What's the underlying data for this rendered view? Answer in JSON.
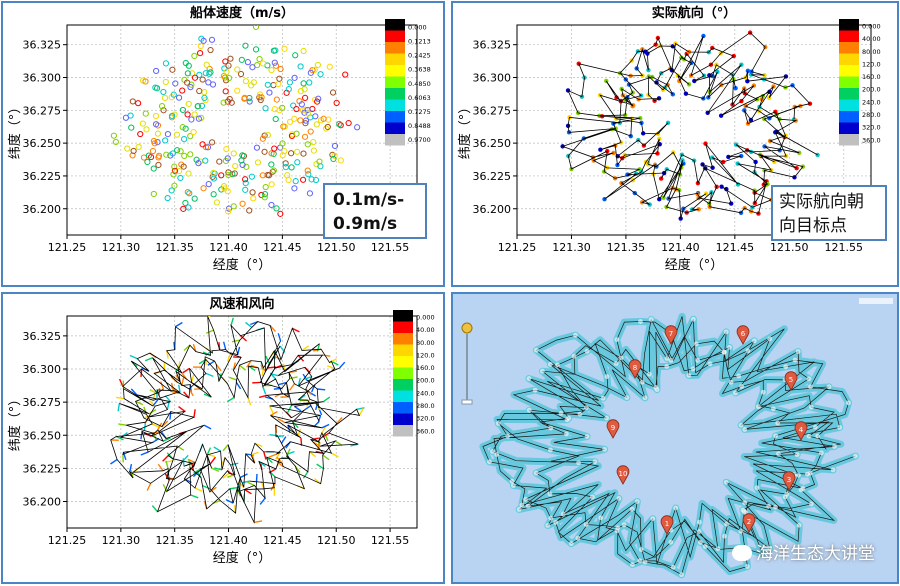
{
  "chart_data": [
    {
      "type": "scatter",
      "title": "船体速度（m/s）",
      "xlabel": "经度（°）",
      "ylabel": "纬度（°）",
      "xlim": [
        121.25,
        121.575
      ],
      "ylim": [
        36.18,
        36.34
      ],
      "x_ticks": [
        "121.25",
        "121.30",
        "121.35",
        "121.40",
        "121.45",
        "121.50",
        "121.55"
      ],
      "y_ticks": [
        "36.325",
        "36.300",
        "36.275",
        "36.250",
        "36.225",
        "36.200"
      ],
      "legend": [
        "0.000",
        "0.1213",
        "0.2425",
        "0.3638",
        "0.4850",
        "0.6063",
        "0.7275",
        "0.8488",
        "0.9700"
      ],
      "legend_colors": [
        "#000000",
        "#ff0000",
        "#ff8000",
        "#ffd700",
        "#ffff00",
        "#80ff00",
        "#00d060",
        "#00e0e0",
        "#0060ff",
        "#0000cc",
        "#c0c0c0"
      ],
      "annotation": [
        "0.1m/s-",
        "0.9m/s"
      ]
    },
    {
      "type": "line",
      "title": "实际航向（°）",
      "xlabel": "经度（°）",
      "ylabel": "纬度（°）",
      "xlim": [
        121.25,
        121.575
      ],
      "ylim": [
        36.18,
        36.34
      ],
      "x_ticks": [
        "121.25",
        "121.30",
        "121.35",
        "121.40",
        "121.45",
        "121.50",
        "121.55"
      ],
      "y_ticks": [
        "36.325",
        "36.300",
        "36.275",
        "36.250",
        "36.225",
        "36.200"
      ],
      "legend": [
        "0.000",
        "40.00",
        "80.00",
        "120.0",
        "160.0",
        "200.0",
        "240.0",
        "280.0",
        "320.0",
        "360.0"
      ],
      "legend_colors": [
        "#000000",
        "#ff0000",
        "#ff8000",
        "#ffd700",
        "#ffff00",
        "#80ff00",
        "#00d060",
        "#00e0e0",
        "#0060ff",
        "#0000cc",
        "#c0c0c0"
      ],
      "annotation": [
        "实际航向朝",
        "向目标点"
      ]
    },
    {
      "type": "line",
      "title": "风速和风向",
      "xlabel": "经度（°）",
      "ylabel": "纬度（°）",
      "xlim": [
        121.25,
        121.575
      ],
      "ylim": [
        36.18,
        36.34
      ],
      "x_ticks": [
        "121.25",
        "121.30",
        "121.35",
        "121.40",
        "121.45",
        "121.50",
        "121.55"
      ],
      "y_ticks": [
        "36.325",
        "36.300",
        "36.275",
        "36.250",
        "36.225",
        "36.200"
      ],
      "legend": [
        "0.000",
        "40.00",
        "80.00",
        "120.0",
        "160.0",
        "200.0",
        "240.0",
        "280.0",
        "320.0",
        "360.0"
      ],
      "legend_colors": [
        "#000000",
        "#ff0000",
        "#ff8000",
        "#ffd700",
        "#ffff00",
        "#80ff00",
        "#00d060",
        "#00e0e0",
        "#0060ff",
        "#0000cc",
        "#c0c0c0"
      ]
    }
  ],
  "map": {
    "markers": [
      "1",
      "2",
      "3",
      "4",
      "5",
      "6",
      "7",
      "8",
      "9",
      "10"
    ],
    "watermark": "海洋生态大讲堂",
    "background": "#b9d3f2",
    "track_color": "#5fc8dc"
  }
}
